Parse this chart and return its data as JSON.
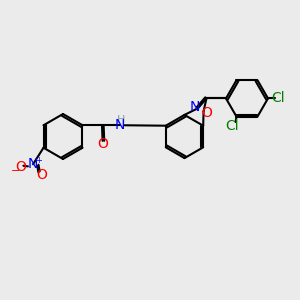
{
  "background_color": "#ebebeb",
  "figsize": [
    3.0,
    3.0
  ],
  "dpi": 100,
  "bond_color": "#000000",
  "bond_width": 1.5,
  "font_size": 9,
  "colors": {
    "C": "#000000",
    "N": "#0000ff",
    "O": "#ff0000",
    "Cl": "#008000",
    "H": "#7f9f9f",
    "NH": "#7f9f9f"
  }
}
